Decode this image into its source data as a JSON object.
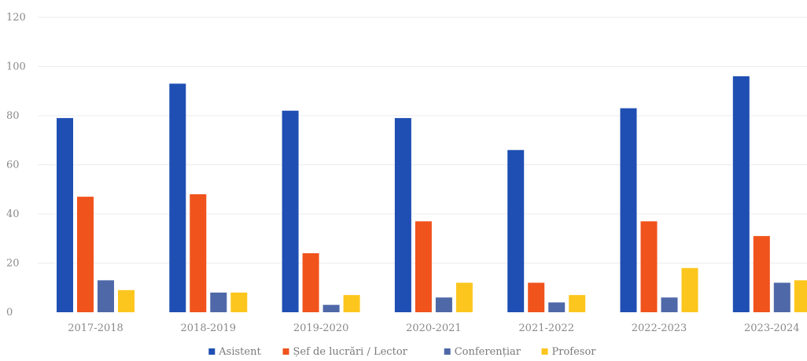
{
  "chart_data": {
    "type": "bar",
    "title": "",
    "xlabel": "",
    "ylabel": "",
    "ylim": [
      0,
      120
    ],
    "yticks": [
      0,
      20,
      40,
      60,
      80,
      100,
      120
    ],
    "grid": true,
    "legend_position": "bottom",
    "categories": [
      "2017-2018",
      "2018-2019",
      "2019-2020",
      "2020-2021",
      "2021-2022",
      "2022-2023",
      "2023-2024"
    ],
    "series": [
      {
        "name": "Asistent",
        "color": "#1f4fb3",
        "values": [
          79,
          93,
          82,
          79,
          66,
          83,
          96
        ]
      },
      {
        "name": "Șef de lucrări / Lector",
        "color": "#f0531c",
        "values": [
          47,
          48,
          24,
          37,
          12,
          37,
          31
        ]
      },
      {
        "name": "Conferențiar",
        "color": "#4f68a8",
        "values": [
          13,
          8,
          3,
          6,
          4,
          6,
          12
        ]
      },
      {
        "name": "Profesor",
        "color": "#fcc61e",
        "values": [
          9,
          8,
          7,
          12,
          7,
          18,
          13
        ]
      }
    ]
  }
}
